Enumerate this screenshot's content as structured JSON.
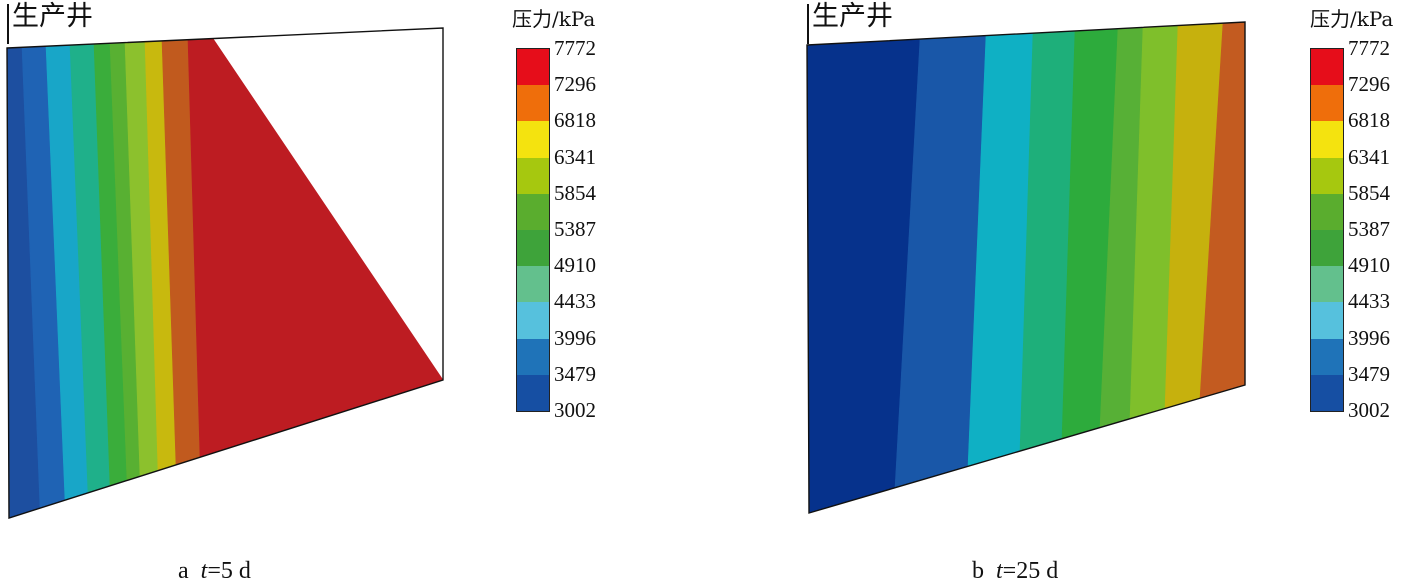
{
  "legend": {
    "unit": "压力/kPa",
    "ticks": [
      "7772",
      "7296",
      "6818",
      "6341",
      "5854",
      "5387",
      "4910",
      "4433",
      "3996",
      "3479",
      "3002"
    ],
    "colors": [
      "#e60d1a",
      "#ef6e0b",
      "#f4e30f",
      "#a6c80f",
      "#5aad2e",
      "#3ea33a",
      "#63c08d",
      "#56c1dd",
      "#1f73b8",
      "#164fa3"
    ]
  },
  "panels": [
    {
      "well_label": "生产井",
      "caption_letter": "a",
      "caption_var": "t",
      "caption_value": "=5 d",
      "bands": [
        {
          "color": "#1d4fa0"
        },
        {
          "color": "#1f63b4"
        },
        {
          "color": "#18a6c8"
        },
        {
          "color": "#1fb08a"
        },
        {
          "color": "#3aad3b"
        },
        {
          "color": "#58b032"
        },
        {
          "color": "#8cc12d"
        },
        {
          "color": "#c8b90e"
        },
        {
          "color": "#c15a1e"
        },
        {
          "color": "#bd1c22"
        }
      ]
    },
    {
      "well_label": "生产井",
      "caption_letter": "b",
      "caption_var": "t",
      "caption_value": "=25 d",
      "bands": [
        {
          "color": "#06328c"
        },
        {
          "color": "#1957a8"
        },
        {
          "color": "#0fb0c4"
        },
        {
          "color": "#1eaf7a"
        },
        {
          "color": "#2dab3c"
        },
        {
          "color": "#57b036"
        },
        {
          "color": "#7fbf2b"
        },
        {
          "color": "#c6b10d"
        },
        {
          "color": "#c35b20"
        }
      ]
    }
  ]
}
